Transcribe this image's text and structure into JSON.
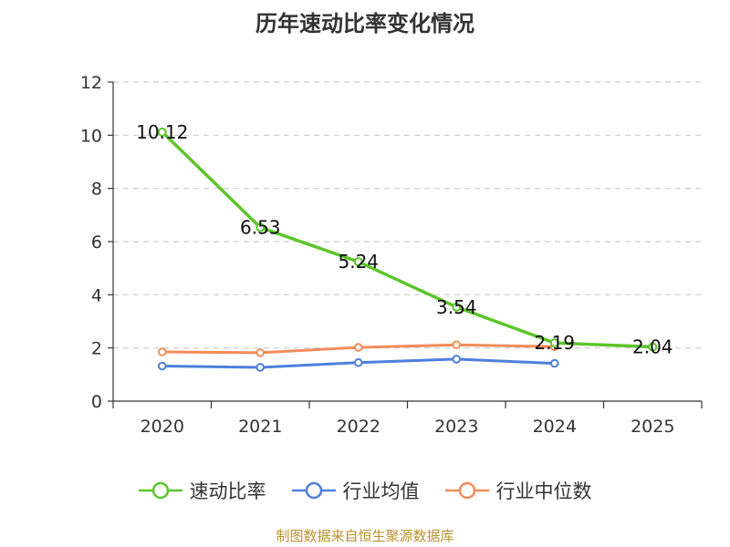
{
  "title": "历年速动比率变化情况",
  "footer": "制图数据来自恒生聚源数据库",
  "colors": {
    "quick_ratio": "#5cc52a",
    "industry_avg": "#4e7fdc",
    "industry_median": "#f28c5a",
    "grid": "#cccccc",
    "axis": "#333333"
  },
  "legend": [
    {
      "name": "速动比率",
      "color": "#5cc52a"
    },
    {
      "name": "行业均值",
      "color": "#4e7fdc"
    },
    {
      "name": "行业中位数",
      "color": "#f28c5a"
    }
  ],
  "chart_data": {
    "type": "line",
    "title": "历年速动比率变化情况",
    "categories": [
      "2020",
      "2021",
      "2022",
      "2023",
      "2024",
      "2025"
    ],
    "ylim": [
      0,
      12
    ],
    "yticks": [
      0,
      2,
      4,
      6,
      8,
      10,
      12
    ],
    "grid": true,
    "legend_position": "bottom",
    "series": [
      {
        "name": "速动比率",
        "color": "#5cc52a",
        "values": [
          10.12,
          6.53,
          5.24,
          3.54,
          2.19,
          2.04
        ],
        "labels": [
          "10.12",
          "6.53",
          "5.24",
          "3.54",
          "2.19",
          "2.04"
        ]
      },
      {
        "name": "行业均值",
        "color": "#4e7fdc",
        "values": [
          1.32,
          1.27,
          1.45,
          1.58,
          1.42,
          null
        ]
      },
      {
        "name": "行业中位数",
        "color": "#f28c5a",
        "values": [
          1.85,
          1.82,
          2.02,
          2.12,
          2.05,
          null
        ]
      }
    ]
  }
}
